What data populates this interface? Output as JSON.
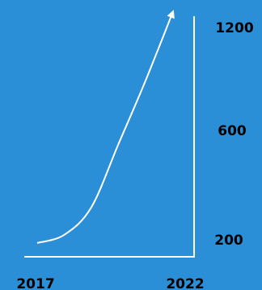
{
  "colors": {
    "background": "#2a8fd6",
    "line": "#ffffff",
    "axis": "#ffffff",
    "tick_text": "#000000"
  },
  "chart_data": {
    "type": "line",
    "title": "",
    "xlabel": "",
    "ylabel": "",
    "x_ticks": [
      "2017",
      "2022"
    ],
    "y_ticks": [
      "200",
      "600",
      "1200"
    ],
    "y_tick_values": [
      200,
      600,
      1200
    ],
    "y_scale": "nonlinear",
    "xlim": [
      2017,
      2022
    ],
    "ylim": [
      100,
      1300
    ],
    "grid": false,
    "legend": "none",
    "arrow_at_end": true,
    "series": [
      {
        "x": [
          2017,
          2018,
          2019,
          2020,
          2021,
          2022
        ],
        "y": [
          200,
          230,
          330,
          560,
          900,
          1280
        ]
      }
    ]
  }
}
